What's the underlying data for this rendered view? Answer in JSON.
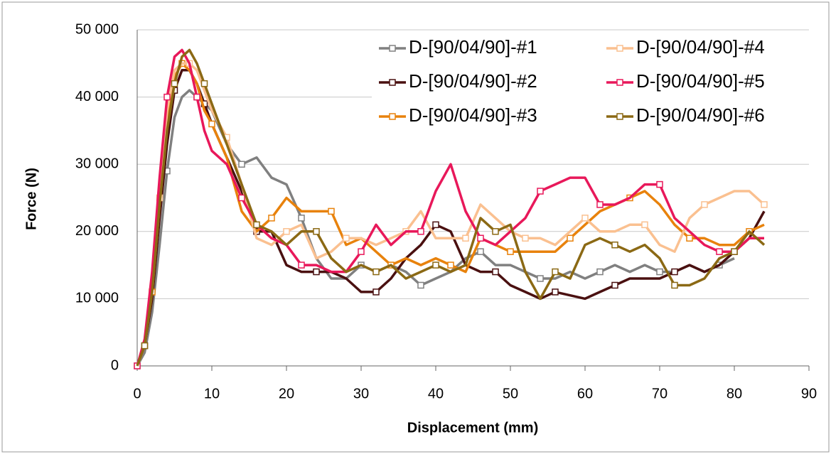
{
  "chart_data": {
    "type": "line",
    "ylabel": "Force (N)",
    "xlabel": "Displacement (mm)",
    "x": [
      0,
      1,
      2,
      3,
      4,
      5,
      6,
      7,
      8,
      9,
      10,
      12,
      14,
      16,
      18,
      20,
      22,
      24,
      26,
      28,
      30,
      32,
      34,
      36,
      38,
      40,
      42,
      44,
      46,
      48,
      50,
      52,
      54,
      56,
      58,
      60,
      62,
      64,
      66,
      68,
      70,
      72,
      74,
      76,
      78,
      80,
      82,
      84
    ],
    "series": [
      {
        "name": "D-[90/04/90]-#1",
        "color": "#808080",
        "values": [
          0,
          2000,
          8000,
          18000,
          29000,
          37000,
          40000,
          41000,
          40000,
          39000,
          38000,
          33000,
          30000,
          31000,
          28000,
          27000,
          22000,
          16000,
          13000,
          13000,
          15000,
          14000,
          15000,
          14000,
          12000,
          13000,
          14000,
          16000,
          17000,
          15000,
          15000,
          14000,
          13000,
          13000,
          14000,
          13000,
          14000,
          15000,
          14000,
          15000,
          14000,
          14000,
          15000,
          14000,
          15000,
          16000,
          null,
          null
        ]
      },
      {
        "name": "D-[90/04/90]-#2",
        "color": "#4a1010",
        "values": [
          0,
          3000,
          10000,
          22000,
          33000,
          41000,
          44000,
          44000,
          42000,
          39000,
          36000,
          31000,
          26000,
          20000,
          20000,
          15000,
          14000,
          14000,
          14000,
          13000,
          11000,
          11000,
          13000,
          16000,
          18000,
          21000,
          20000,
          15000,
          14000,
          14000,
          12000,
          11000,
          10000,
          11000,
          10500,
          10000,
          11000,
          12000,
          13000,
          13000,
          13000,
          14000,
          15000,
          14000,
          15000,
          17000,
          19000,
          23000
        ]
      },
      {
        "name": "D-[90/04/90]-#3",
        "color": "#e8820c",
        "values": [
          0,
          3000,
          11000,
          24000,
          36000,
          43000,
          45000,
          44000,
          42000,
          38000,
          36000,
          31000,
          23000,
          20000,
          22000,
          25000,
          23000,
          23000,
          23000,
          18000,
          19000,
          17000,
          15000,
          16000,
          15000,
          16000,
          15000,
          14000,
          19000,
          18000,
          17000,
          17000,
          17000,
          17000,
          19000,
          21000,
          23000,
          24000,
          25000,
          26000,
          24000,
          21000,
          19000,
          19000,
          18000,
          18000,
          20000,
          21000
        ]
      },
      {
        "name": "D-[90/04/90]-#4",
        "color": "#fac090",
        "values": [
          0,
          3000,
          12000,
          25000,
          38000,
          44000,
          45000,
          45000,
          44000,
          41000,
          38000,
          34000,
          27000,
          19000,
          18000,
          20000,
          21000,
          16000,
          17000,
          19000,
          19000,
          18000,
          19000,
          20000,
          23000,
          19000,
          19000,
          19000,
          24000,
          22000,
          20000,
          19000,
          19000,
          18000,
          20000,
          22000,
          20000,
          20000,
          21000,
          21000,
          18000,
          17000,
          22000,
          24000,
          25000,
          26000,
          26000,
          24000
        ]
      },
      {
        "name": "D-[90/04/90]-#5",
        "color": "#e8185a",
        "values": [
          0,
          4000,
          14000,
          28000,
          40000,
          46000,
          47000,
          45000,
          40000,
          35000,
          32000,
          30000,
          25000,
          21000,
          19000,
          18000,
          15000,
          15000,
          14000,
          14000,
          17000,
          21000,
          18000,
          20000,
          20000,
          26000,
          30000,
          23000,
          19000,
          18000,
          20000,
          22000,
          26000,
          27000,
          28000,
          28000,
          24000,
          24000,
          25000,
          27000,
          27000,
          22000,
          20000,
          18000,
          17000,
          17000,
          19000,
          19000
        ]
      },
      {
        "name": "D-[90/04/90]-#6",
        "color": "#8b6914",
        "values": [
          0,
          3000,
          11000,
          24000,
          35000,
          42000,
          46000,
          47000,
          45000,
          42000,
          39000,
          33000,
          27000,
          21000,
          20000,
          18000,
          20000,
          20000,
          16000,
          14000,
          15000,
          14000,
          15000,
          13000,
          14000,
          15000,
          14000,
          15000,
          22000,
          20000,
          21000,
          14000,
          10000,
          14000,
          13000,
          18000,
          19000,
          18000,
          17000,
          18000,
          16000,
          12000,
          12000,
          13000,
          16000,
          17000,
          20000,
          18000
        ]
      }
    ],
    "xlim": [
      0,
      90
    ],
    "xticks": [
      0,
      10,
      20,
      30,
      40,
      50,
      60,
      70,
      80,
      90
    ],
    "ylim": [
      0,
      50000
    ],
    "yticks": [
      0,
      {
        "value": 10000,
        "label": "10 000"
      },
      {
        "value": 20000,
        "label": "20 000"
      },
      {
        "value": 30000,
        "label": "30 000"
      },
      {
        "value": 40000,
        "label": "40 000"
      },
      {
        "value": 50000,
        "label": "50 000"
      }
    ],
    "grid": true,
    "legend": "upper right"
  }
}
